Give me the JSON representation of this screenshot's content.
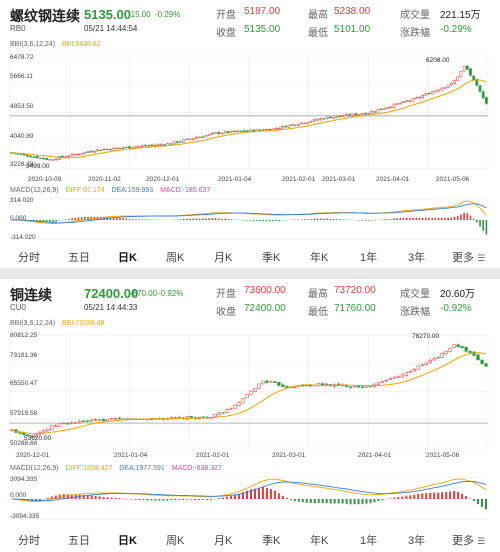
{
  "panels": [
    {
      "name": "螺纹钢连续",
      "code": "RB0",
      "price": "5135.00",
      "change": "-15.00",
      "change_pct": "-0.29%",
      "datetime": "05/21 14:44:54",
      "stats": [
        {
          "label": "开盘",
          "value": "5187.00",
          "color": "red"
        },
        {
          "label": "最高",
          "value": "5238.00",
          "color": "red"
        },
        {
          "label": "成交量",
          "value": "221.15万",
          "color": "dark"
        },
        {
          "label": "收盘",
          "value": "5135.00",
          "color": "green"
        },
        {
          "label": "最低",
          "value": "5101.00",
          "color": "green"
        },
        {
          "label": "涨跌幅",
          "value": "-0.29%",
          "color": "green"
        }
      ],
      "bbi_label": "BBI(3,6,12,24)",
      "bbi_value": "BBI:5438.62",
      "y_ticks": [
        "6478.72",
        "5666.11",
        "4853.50",
        "4040.89",
        "3228.28"
      ],
      "low_label": "3499.00",
      "high_label": "6208.00",
      "x_ticks": [
        "2020-10-09",
        "2020-11-02",
        "2020-12-01",
        "2021-01-04",
        "2021-02-01",
        "2021-03-01",
        "2021-04-01",
        "2021-05-06"
      ],
      "macd_label": "MACD(12,26,9)",
      "diff": "DIFF:67.174",
      "dea": "DEA:159.993",
      "macd": "MACD:-185.637",
      "macd_ticks": [
        "314.020",
        "0.000",
        "-314.020"
      ],
      "chart_data": {
        "type": "candlestick",
        "ylim": [
          3228.28,
          6478.72
        ],
        "x_start": "2020-10-09",
        "x_end": "2021-05-21",
        "anchors": [
          [
            0,
            3700
          ],
          [
            0.08,
            3499
          ],
          [
            0.18,
            3780
          ],
          [
            0.33,
            3950
          ],
          [
            0.43,
            4260
          ],
          [
            0.55,
            4380
          ],
          [
            0.66,
            4700
          ],
          [
            0.75,
            4840
          ],
          [
            0.85,
            5250
          ],
          [
            0.93,
            5700
          ],
          [
            0.955,
            6208
          ],
          [
            0.98,
            5600
          ],
          [
            1.0,
            5135
          ]
        ]
      }
    },
    {
      "name": "铜连续",
      "code": "CU0",
      "price": "72400.00",
      "change": "-670.00",
      "change_pct": "-0.92%",
      "datetime": "05/21 14:44:33",
      "stats": [
        {
          "label": "开盘",
          "value": "73600.00",
          "color": "red"
        },
        {
          "label": "最高",
          "value": "73720.00",
          "color": "red"
        },
        {
          "label": "成交量",
          "value": "20.60万",
          "color": "dark"
        },
        {
          "label": "收盘",
          "value": "72400.00",
          "color": "green"
        },
        {
          "label": "最低",
          "value": "71760.00",
          "color": "green"
        },
        {
          "label": "涨跌幅",
          "value": "-0.92%",
          "color": "green"
        }
      ],
      "bbi_label": "BBI(3,6,12,24)",
      "bbi_value": "BBI:73789.48",
      "y_ticks": [
        "80812.25",
        "73181.36",
        "65550.47",
        "57919.58",
        "50288.68"
      ],
      "low_label": "53620.00",
      "high_label": "78270.00",
      "x_ticks": [
        "2020-12-01",
        "2021-01-04",
        "2021-02-01",
        "2021-03-01",
        "2021-04-01",
        "2021-05-06"
      ],
      "macd_label": "MACD(12,26,9)",
      "diff": "DIFF:1558.427",
      "dea": "DEA:1977.591",
      "macd": "MACD:-838.327",
      "macd_ticks": [
        "3094.335",
        "0.000",
        "-3094.335"
      ],
      "chart_data": {
        "type": "candlestick",
        "ylim": [
          50288.68,
          80812.25
        ],
        "x_start": "2020-11-20",
        "x_end": "2021-05-21",
        "anchors": [
          [
            0,
            55000
          ],
          [
            0.04,
            53620
          ],
          [
            0.1,
            56800
          ],
          [
            0.2,
            58000
          ],
          [
            0.3,
            58200
          ],
          [
            0.42,
            58600
          ],
          [
            0.47,
            61500
          ],
          [
            0.53,
            68500
          ],
          [
            0.58,
            66800
          ],
          [
            0.65,
            67500
          ],
          [
            0.75,
            66800
          ],
          [
            0.83,
            70500
          ],
          [
            0.9,
            75000
          ],
          [
            0.935,
            78270
          ],
          [
            0.97,
            75500
          ],
          [
            1.0,
            72400
          ]
        ]
      }
    }
  ],
  "tabs": [
    "分时",
    "五日",
    "日K",
    "周K",
    "月K",
    "季K",
    "年K",
    "1年",
    "3年",
    "更多"
  ],
  "active_tab": "日K",
  "colors": {
    "up": "#e23b3b",
    "down": "#2e9a3a",
    "bbi": "#f0a400",
    "diff": "#f0a400",
    "dea": "#3b7de0",
    "macd": "#d84aa0",
    "grid": "#e9e9e9"
  }
}
